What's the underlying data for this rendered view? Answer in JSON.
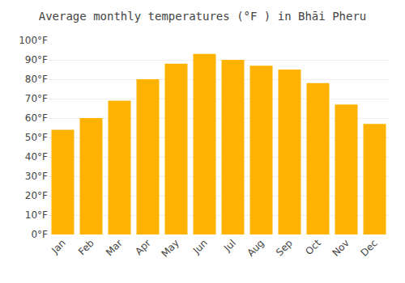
{
  "chart_data": {
    "type": "bar",
    "title": "Average monthly temperatures (°F ) in Bhāi Pheru",
    "categories": [
      "Jan",
      "Feb",
      "Mar",
      "Apr",
      "May",
      "Jun",
      "Jul",
      "Aug",
      "Sep",
      "Oct",
      "Nov",
      "Dec"
    ],
    "values": [
      54,
      60,
      69,
      80,
      88,
      93,
      90,
      87,
      85,
      78,
      67,
      57
    ],
    "color": "#FFB300",
    "ylim": [
      0,
      100
    ],
    "yticks": [
      {
        "value": 0,
        "label": "0°F"
      },
      {
        "value": 10,
        "label": "10°F"
      },
      {
        "value": 20,
        "label": "20°F"
      },
      {
        "value": 30,
        "label": "30°F"
      },
      {
        "value": 40,
        "label": "40°F"
      },
      {
        "value": 50,
        "label": "50°F"
      },
      {
        "value": 60,
        "label": "60°F"
      },
      {
        "value": 70,
        "label": "70°F"
      },
      {
        "value": 80,
        "label": "80°F"
      },
      {
        "value": 90,
        "label": "90°F"
      },
      {
        "value": 100,
        "label": "100°F"
      }
    ],
    "grid": true
  }
}
